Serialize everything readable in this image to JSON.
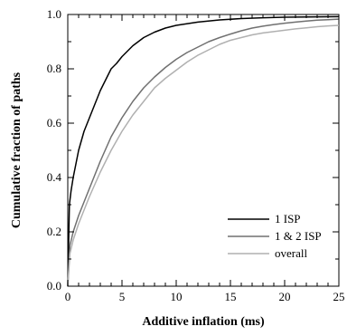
{
  "chart_data": {
    "type": "line",
    "title": "",
    "xlabel": "Additive inflation (ms)",
    "ylabel": "Cumulative fraction of paths",
    "xlim": [
      0,
      25
    ],
    "ylim": [
      0.0,
      1.0
    ],
    "x_ticks": [
      0,
      5,
      10,
      15,
      20,
      25
    ],
    "y_ticks": [
      0.0,
      0.2,
      0.4,
      0.6,
      0.8,
      1.0
    ],
    "x_tick_labels": [
      "0",
      "5",
      "10",
      "15",
      "20",
      "25"
    ],
    "y_tick_labels": [
      "0.0",
      "0.2",
      "0.4",
      "0.6",
      "0.8",
      "1.0"
    ],
    "grid": false,
    "legend_position": "bottom-right",
    "series": [
      {
        "name": "1 ISP",
        "color": "#000000",
        "x": [
          0,
          0.15,
          0.3,
          0.5,
          0.75,
          1,
          1.5,
          2,
          2.5,
          3,
          3.5,
          4,
          4.5,
          5,
          6,
          7,
          8,
          9,
          10,
          12,
          14,
          16,
          18,
          20,
          22,
          25
        ],
        "y": [
          0.0,
          0.3,
          0.35,
          0.4,
          0.45,
          0.5,
          0.57,
          0.62,
          0.67,
          0.72,
          0.76,
          0.8,
          0.82,
          0.845,
          0.885,
          0.915,
          0.935,
          0.95,
          0.96,
          0.972,
          0.98,
          0.985,
          0.988,
          0.99,
          0.991,
          0.992
        ]
      },
      {
        "name": "1 & 2 ISP",
        "color": "#707070",
        "x": [
          0,
          0.2,
          0.5,
          1,
          1.5,
          2,
          3,
          4,
          5,
          6,
          7,
          8,
          9,
          10,
          11,
          12,
          13,
          14,
          15,
          16,
          17,
          18,
          19,
          20,
          21,
          22,
          23,
          24,
          25
        ],
        "y": [
          0.0,
          0.15,
          0.2,
          0.26,
          0.31,
          0.36,
          0.46,
          0.55,
          0.62,
          0.68,
          0.73,
          0.77,
          0.805,
          0.835,
          0.86,
          0.88,
          0.9,
          0.915,
          0.928,
          0.94,
          0.95,
          0.957,
          0.963,
          0.968,
          0.972,
          0.976,
          0.979,
          0.981,
          0.983
        ]
      },
      {
        "name": "overall",
        "color": "#b0b0b0",
        "x": [
          0,
          0.2,
          0.5,
          1,
          1.5,
          2,
          3,
          4,
          5,
          6,
          7,
          8,
          9,
          10,
          11,
          12,
          13,
          14,
          15,
          16,
          17,
          18,
          19,
          20,
          21,
          22,
          23,
          24,
          25
        ],
        "y": [
          0.0,
          0.12,
          0.17,
          0.23,
          0.28,
          0.33,
          0.42,
          0.5,
          0.57,
          0.63,
          0.68,
          0.73,
          0.765,
          0.795,
          0.825,
          0.85,
          0.87,
          0.89,
          0.905,
          0.915,
          0.925,
          0.932,
          0.937,
          0.942,
          0.947,
          0.951,
          0.955,
          0.958,
          0.96
        ]
      }
    ]
  }
}
